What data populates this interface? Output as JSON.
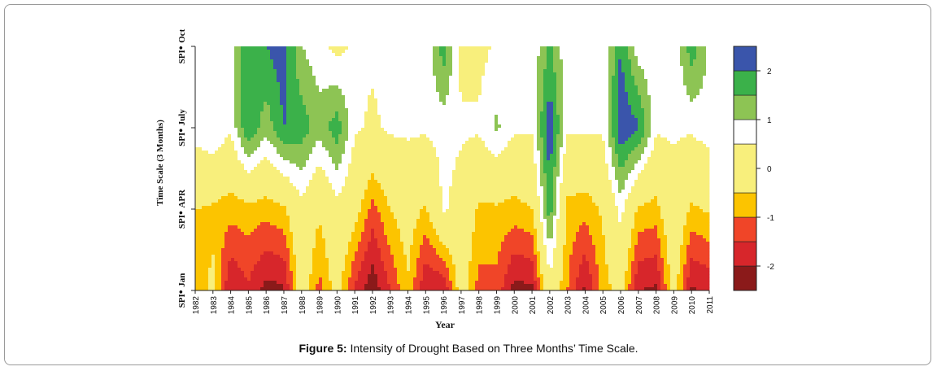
{
  "caption": {
    "bold": "Figure 5:",
    "text": " Intensity of Drought Based on Three Months’ Time Scale."
  },
  "chart_data": {
    "type": "heatmap",
    "title": "",
    "xlabel": "Year",
    "ylabel": "Time Scale (3 Months)",
    "x": [
      "1982",
      "1983",
      "1984",
      "1985",
      "1986",
      "1987",
      "1988",
      "1989",
      "1990",
      "1991",
      "1992",
      "1993",
      "1994",
      "1995",
      "1996",
      "1997",
      "1998",
      "1999",
      "2000",
      "2001",
      "2002",
      "2003",
      "2004",
      "2005",
      "2006",
      "2007",
      "2008",
      "2009",
      "2010",
      "2011"
    ],
    "y_ticks": [
      {
        "label": "SPI",
        "sub": "Jan",
        "value": 0
      },
      {
        "label": "SPI",
        "sub": "APR",
        "value": 1
      },
      {
        "label": "SPI",
        "sub": "July",
        "value": 2
      },
      {
        "label": "SPI",
        "sub": "Oct",
        "value": 3
      }
    ],
    "ylim": [
      0,
      3
    ],
    "colorbar": {
      "range": [
        -2.5,
        2.5
      ],
      "tick_labels": [
        "2",
        "1",
        "0",
        "-1",
        "-2"
      ],
      "tick_values": [
        2,
        1,
        0,
        -1,
        -2
      ],
      "levels": [
        -2.5,
        -2.0,
        -1.5,
        -1.0,
        -0.5,
        0.5,
        1.0,
        1.5,
        2.0,
        2.5
      ],
      "colors": [
        "#8b1a1a",
        "#d7262b",
        "#f04528",
        "#fcc400",
        "#f8ef7c",
        "#ffffff",
        "#8dc454",
        "#3bb14a",
        "#3a55ab",
        "#26307a"
      ]
    },
    "z_rows": {
      "SPI_Jan": [
        -0.8,
        -0.4,
        -2.0,
        -1.6,
        -2.2,
        -2.1,
        0.0,
        -1.2,
        -0.2,
        -1.6,
        -2.4,
        -1.5,
        -0.6,
        -2.0,
        -2.0,
        -0.1,
        -1.2,
        -1.2,
        -2.2,
        -2.1,
        0.2,
        -1.0,
        -2.1,
        -0.8,
        -0.2,
        -2.0,
        -2.1,
        -0.1,
        -2.1,
        -1.9
      ],
      "SPI_APR": [
        -0.5,
        -0.6,
        -0.8,
        -0.7,
        -0.8,
        -0.6,
        0.3,
        -0.4,
        0.3,
        -0.2,
        -1.2,
        -0.5,
        -0.1,
        -0.6,
        0.6,
        0.2,
        -0.6,
        -0.6,
        -0.7,
        -0.5,
        1.8,
        -0.7,
        -0.8,
        -0.4,
        0.7,
        -0.6,
        -0.7,
        0.2,
        -0.6,
        -0.4
      ],
      "SPI_July": [
        0.8,
        1.0,
        0.6,
        2.0,
        1.2,
        2.0,
        1.8,
        1.2,
        1.8,
        0.6,
        0.4,
        0.6,
        0.6,
        0.6,
        0.7,
        0.6,
        0.6,
        1.1,
        0.6,
        0.6,
        2.4,
        0.6,
        0.6,
        0.6,
        2.4,
        2.1,
        0.6,
        0.6,
        0.6,
        0.8
      ],
      "SPI_Oct": [
        0.6,
        0.8,
        0.7,
        2.0,
        2.0,
        2.3,
        1.0,
        0.7,
        0.3,
        0.6,
        0.6,
        0.7,
        0.6,
        0.6,
        1.8,
        0.3,
        0.3,
        0.6,
        0.6,
        0.6,
        1.6,
        0.6,
        0.6,
        0.6,
        2.0,
        0.7,
        0.7,
        0.6,
        1.8,
        0.9
      ]
    }
  }
}
